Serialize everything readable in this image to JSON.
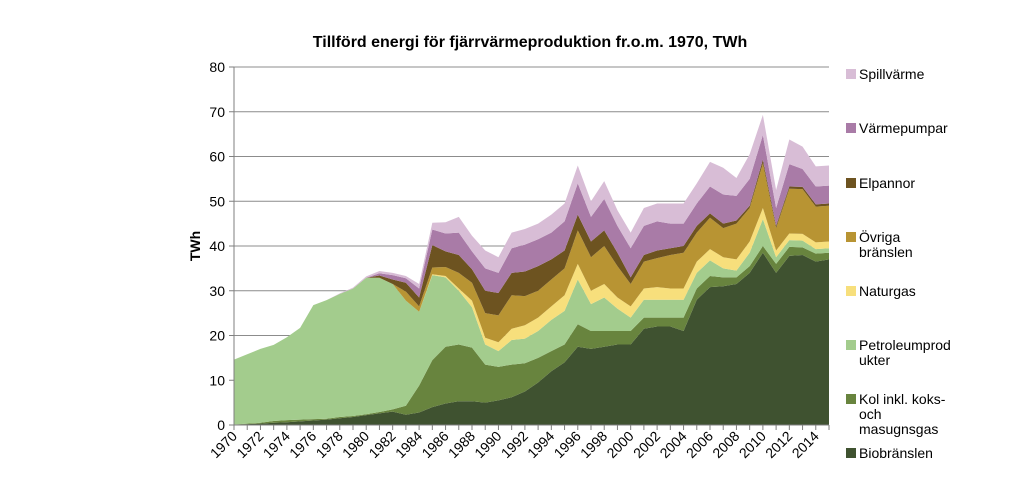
{
  "chart_data": {
    "type": "area",
    "stacked": true,
    "title": "Tillförd energi för fjärrvärmeproduktion fr.o.m. 1970, TWh",
    "ylabel": "TWh",
    "xlabel": "",
    "ylim": [
      0,
      80
    ],
    "yticks": [
      0,
      10,
      20,
      30,
      40,
      50,
      60,
      70,
      80
    ],
    "grid": true,
    "legend_position": "right",
    "x": [
      1970,
      1971,
      1972,
      1973,
      1974,
      1975,
      1976,
      1977,
      1978,
      1979,
      1980,
      1981,
      1982,
      1983,
      1984,
      1985,
      1986,
      1987,
      1988,
      1989,
      1990,
      1991,
      1992,
      1993,
      1994,
      1995,
      1996,
      1997,
      1998,
      1999,
      2000,
      2001,
      2002,
      2003,
      2004,
      2005,
      2006,
      2007,
      2008,
      2009,
      2010,
      2011,
      2012,
      2013,
      2014,
      2015
    ],
    "xtick_labels": [
      "1970",
      "1972",
      "1974",
      "1976",
      "1978",
      "1980",
      "1982",
      "1984",
      "1986",
      "1988",
      "1990",
      "1992",
      "1994",
      "1996",
      "1998",
      "2000",
      "2002",
      "2004",
      "2006",
      "2008",
      "2010",
      "2012",
      "2014"
    ],
    "series": [
      {
        "name": "Biobränslen",
        "color": "#3f5230",
        "values": [
          0.1,
          0.2,
          0.3,
          0.5,
          0.6,
          0.8,
          1.0,
          1.2,
          1.5,
          1.8,
          2.2,
          2.6,
          3.0,
          2.3,
          2.8,
          4.0,
          4.8,
          5.3,
          5.3,
          5.0,
          5.5,
          6.2,
          7.5,
          9.5,
          12.0,
          14.0,
          17.5,
          17.0,
          17.5,
          18.0,
          18.0,
          21.5,
          22.0,
          22.0,
          21.0,
          28.0,
          30.8,
          31.0,
          31.5,
          34.0,
          38.5,
          34.0,
          37.8,
          38.0,
          36.5,
          37.0
        ]
      },
      {
        "name": "Kol inkl. koks- och masugnsgas",
        "color": "#68843e",
        "values": [
          0.0,
          0.1,
          0.2,
          0.4,
          0.5,
          0.4,
          0.3,
          0.2,
          0.3,
          0.2,
          0.2,
          0.3,
          0.5,
          2.0,
          6.0,
          10.5,
          12.7,
          12.7,
          12.0,
          8.5,
          7.5,
          7.3,
          6.3,
          5.5,
          4.5,
          4.0,
          5.0,
          4.0,
          3.5,
          3.0,
          3.0,
          2.5,
          2.0,
          2.0,
          3.0,
          2.5,
          2.5,
          2.0,
          1.5,
          1.5,
          1.5,
          2.0,
          2.0,
          1.7,
          1.8,
          1.5
        ]
      },
      {
        "name": "Petroleumprodukter",
        "color": "#a3cc8d",
        "values": [
          14.5,
          15.5,
          16.5,
          17.0,
          18.5,
          20.5,
          25.5,
          26.5,
          27.5,
          28.5,
          30.5,
          30.0,
          28.0,
          23.5,
          16.5,
          19.0,
          15.5,
          12.0,
          9.0,
          4.5,
          3.5,
          5.5,
          5.5,
          6.0,
          7.0,
          7.5,
          10.0,
          6.0,
          7.5,
          5.0,
          3.0,
          4.0,
          4.0,
          4.0,
          4.0,
          3.5,
          3.5,
          2.0,
          1.5,
          3.0,
          6.0,
          1.5,
          1.5,
          1.5,
          1.0,
          1.0
        ]
      },
      {
        "name": "Naturgas",
        "color": "#f7df7c",
        "values": [
          0,
          0,
          0,
          0,
          0,
          0,
          0,
          0,
          0,
          0,
          0,
          0,
          0,
          0,
          0,
          0.2,
          0.3,
          0.5,
          1.5,
          1.5,
          2.0,
          2.5,
          3.0,
          3.0,
          3.0,
          3.5,
          3.5,
          3.0,
          3.0,
          2.5,
          2.5,
          2.5,
          2.8,
          2.5,
          2.5,
          2.5,
          2.5,
          2.5,
          2.5,
          2.5,
          2.5,
          1.5,
          1.5,
          1.5,
          1.5,
          1.5
        ]
      },
      {
        "name": "Övriga bränslen",
        "color": "#b89433",
        "values": [
          0,
          0,
          0,
          0,
          0,
          0,
          0,
          0,
          0,
          0,
          0,
          0,
          0,
          2.0,
          1.2,
          1.5,
          2.0,
          3.5,
          4.0,
          5.5,
          6.0,
          7.5,
          6.5,
          6.0,
          6.0,
          6.0,
          7.5,
          7.5,
          8.5,
          7.0,
          5.0,
          6.0,
          6.5,
          7.5,
          8.0,
          6.5,
          7.0,
          6.5,
          8.0,
          7.5,
          10.0,
          5.0,
          10.0,
          10.0,
          8.0,
          8.0
        ]
      },
      {
        "name": "Elpannor",
        "color": "#6d5320",
        "values": [
          0,
          0,
          0,
          0,
          0,
          0,
          0,
          0,
          0,
          0,
          0,
          0.5,
          1.0,
          2.0,
          2.0,
          5.0,
          3.5,
          4.0,
          3.0,
          5.0,
          5.0,
          5.0,
          5.5,
          5.5,
          4.5,
          4.0,
          3.5,
          3.5,
          3.5,
          3.0,
          1.5,
          1.5,
          1.7,
          1.5,
          1.5,
          1.5,
          1.0,
          1.0,
          0.7,
          0.5,
          0.8,
          0.5,
          0.5,
          0.5,
          0.5,
          0.5
        ]
      },
      {
        "name": "Värmepumpar",
        "color": "#a97ba7",
        "values": [
          0,
          0,
          0,
          0,
          0,
          0,
          0,
          0,
          0,
          0,
          0,
          0.5,
          1.0,
          1.0,
          2.0,
          3.5,
          4.0,
          5.0,
          4.0,
          5.0,
          4.5,
          5.5,
          6.0,
          6.0,
          6.0,
          6.5,
          7.0,
          5.5,
          7.0,
          6.0,
          6.5,
          6.5,
          6.5,
          5.5,
          5.0,
          5.0,
          6.0,
          6.5,
          5.5,
          6.0,
          5.5,
          4.0,
          5.0,
          4.0,
          4.0,
          4.0
        ]
      },
      {
        "name": "Spillvärme",
        "color": "#d8bdd6",
        "values": [
          0,
          0,
          0,
          0,
          0,
          0,
          0,
          0,
          0.1,
          0.2,
          0.3,
          0.5,
          0.5,
          0.5,
          1.0,
          1.5,
          2.5,
          3.5,
          3.5,
          4.0,
          3.5,
          3.5,
          3.5,
          3.5,
          4.0,
          4.0,
          4.0,
          3.5,
          4.0,
          3.5,
          3.5,
          4.0,
          4.0,
          4.5,
          4.5,
          4.5,
          5.5,
          6.0,
          4.0,
          5.5,
          4.5,
          4.0,
          5.5,
          5.0,
          4.5,
          4.5
        ]
      }
    ]
  }
}
